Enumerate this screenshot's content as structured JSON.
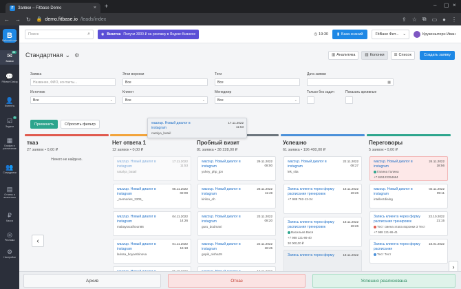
{
  "browser": {
    "tab_title": "Заявки – Fitbase Demo",
    "tab_favicon": "F",
    "url_host": "demo.fitbase.io",
    "url_path": "/leads/index"
  },
  "sidebar": {
    "items": [
      {
        "label": "Рабочий стол",
        "icon": "home-icon",
        "glyph": "⌂"
      },
      {
        "label": "Заявки",
        "icon": "inbox-icon",
        "glyph": "✉",
        "badge": "88"
      },
      {
        "label": "Fitbase Dialog",
        "icon": "chat-icon",
        "glyph": "💬"
      },
      {
        "label": "Клиенты",
        "icon": "users-icon",
        "glyph": "👤"
      },
      {
        "label": "Задачи",
        "icon": "tasks-icon",
        "glyph": "☑",
        "badge": "5"
      },
      {
        "label": "График и расписание",
        "icon": "calendar-icon",
        "glyph": "▦"
      },
      {
        "label": "Сотрудники",
        "icon": "staff-icon",
        "glyph": "👥"
      },
      {
        "label": "Отчеты и аналитика",
        "icon": "chart-icon",
        "glyph": "▤"
      },
      {
        "label": "Касса",
        "icon": "cash-icon",
        "glyph": "₽"
      },
      {
        "label": "Реклама",
        "icon": "ads-icon",
        "glyph": "◎"
      },
      {
        "label": "Настройки",
        "icon": "gear-icon",
        "glyph": "⚙"
      }
    ]
  },
  "topbar": {
    "search_placeholder": "Поиск",
    "promo_brand": "Визитка",
    "promo_text": "Получи 3000 ₽ на рекламу в Яндекс Бизнесе",
    "time": "19:30",
    "kb_label": "База знаний",
    "company": "FitBase Фит...",
    "user": "Крузенштерн Иван"
  },
  "title": {
    "page_title": "Стандартная",
    "analytics": "Аналитика",
    "columns": "Колонки",
    "list": "Список",
    "create": "Создать заявку"
  },
  "filters": {
    "lead_label": "Заявка",
    "lead_placeholder": "Название, ФИО, контакты...",
    "stage_label": "Этап воронки",
    "stage_value": "Все",
    "tags_label": "Теги",
    "tags_value": "Все",
    "date_label": "Дата заявки",
    "source_label": "Источник",
    "source_value": "Все",
    "client_label": "Клиент",
    "client_value": "Все",
    "manager_label": "Менеджер",
    "manager_value": "Все",
    "no_tasks_label": "Только без задач",
    "archive_label": "Показать архивные",
    "apply": "Применить",
    "reset": "Сбросить фильтр"
  },
  "drag_card": {
    "title": "wazzup. Новый диалог в instagram",
    "date": "17.11.2022",
    "time": "11:53",
    "user": "natalya_batail"
  },
  "columns": [
    {
      "title": "тказ",
      "meta": "27 заявок • 0,00 ₽",
      "color": "#e05a4e",
      "empty": "Ничего не найдено.",
      "cards": []
    },
    {
      "title": "Нет ответа 1",
      "meta": "12 заявок • 0,00 ₽",
      "color": "#f2a33a",
      "cards": [
        {
          "title": "wazzup. Новый диалог в instagram",
          "date": "17.11.2022",
          "time": "11:53",
          "sub": "natalya_batail",
          "style": "faded"
        },
        {
          "title": "wazzup. Новый диалог в instagram",
          "date": "05.11.2022",
          "time": "02:09",
          "sub": "_memories_2205_"
        },
        {
          "title": "wazzup. Новый диалог в instagram",
          "date": "04.11.2022",
          "time": "14:26",
          "sub": "makayracalhoun86"
        },
        {
          "title": "wazzup. Новый диалог в instagram",
          "date": "01.11.2022",
          "time": "16:18",
          "sub": "larissa_boyarshinova"
        },
        {
          "title": "wazzup. Новый диалог в instagram",
          "date": "25.10.2022",
          "time": "",
          "sub": ""
        }
      ]
    },
    {
      "title": "Пробный визит",
      "meta": "81 заявка • 38 228,00 ₽",
      "color": "#6c757d",
      "cards": [
        {
          "title": "wazzup. Новый диалог в instagram",
          "date": "29.11.2022",
          "time": "08:00",
          "sub": "yuhey_php_jpn"
        },
        {
          "title": "wazzup. Новый диалог в instagram",
          "date": "28.11.2022",
          "time": "11:49",
          "sub": "kiriloo_oh"
        },
        {
          "title": "wazzup. Новый диалог в instagram",
          "date": "23.11.2022",
          "time": "08:20",
          "sub": "guru_dodmani"
        },
        {
          "title": "wazzup. Новый диалог в instagram",
          "date": "22.11.2022",
          "time": "18:45",
          "sub": "gopik_nisha29"
        },
        {
          "title": "wazzup. Новый диалог в instagram",
          "date": "18.11.2022",
          "time": "",
          "sub": ""
        }
      ]
    },
    {
      "title": "Успешно",
      "meta": "61 заявка • 196 400,00 ₽",
      "color": "#4a90d9",
      "cards": [
        {
          "title": "wazzup. Новый диалог в instagram",
          "date": "22.11.2022",
          "time": "08:27",
          "sub": "lek_sita"
        },
        {
          "title": "Запись клиента через форму расписания тренировок",
          "date": "18.11.2022",
          "time": "19:26",
          "sub": "+7 988 762-12-34",
          "tall": true
        },
        {
          "title": "Запись клиента через форму расписания тренировок",
          "date": "18.11.2022",
          "time": "19:26",
          "sub": "Васильев Вася",
          "sub2": "+7 988 121-86-40",
          "sub3": "30 000,00 ₽",
          "dot": "#2ca58d",
          "tall": true
        },
        {
          "title": "Запись клиента через форму",
          "date": "18.11.2022",
          "time": "",
          "sub": "",
          "style": "gray"
        }
      ]
    },
    {
      "title": "Переговоры",
      "meta": "5 заявок • 0,00 ₽",
      "color": "#2ca58d",
      "cards": [
        {
          "title": "wazzup. Новый диалог в instagram",
          "date": "24.11.2022",
          "time": "18:56",
          "sub": "Галина Галина",
          "sub2": "+7 845123354684",
          "dot": "#2ca58d",
          "style": "red"
        },
        {
          "title": "wazzup. Новый диалог в instagram",
          "date": "02.11.2022",
          "time": "09:11",
          "sub": "intellectdialog"
        },
        {
          "title": "Запись клиента через форму расписания тренировок",
          "date": "22.10.2022",
          "time": "21:15",
          "sub": "Тест смена этапа воронки 3 Тест",
          "sub2": "+7 988 121-86-41",
          "dot": "#e05a4e"
        },
        {
          "title": "Запись клиента через форму расписания",
          "date": "18.01.2022",
          "time": "",
          "sub": "Тест Тест",
          "dot": "#4a90d9"
        }
      ]
    }
  ],
  "bottom": {
    "archive": "Архив",
    "reject": "Отказ",
    "success": "Успешно реализована"
  }
}
